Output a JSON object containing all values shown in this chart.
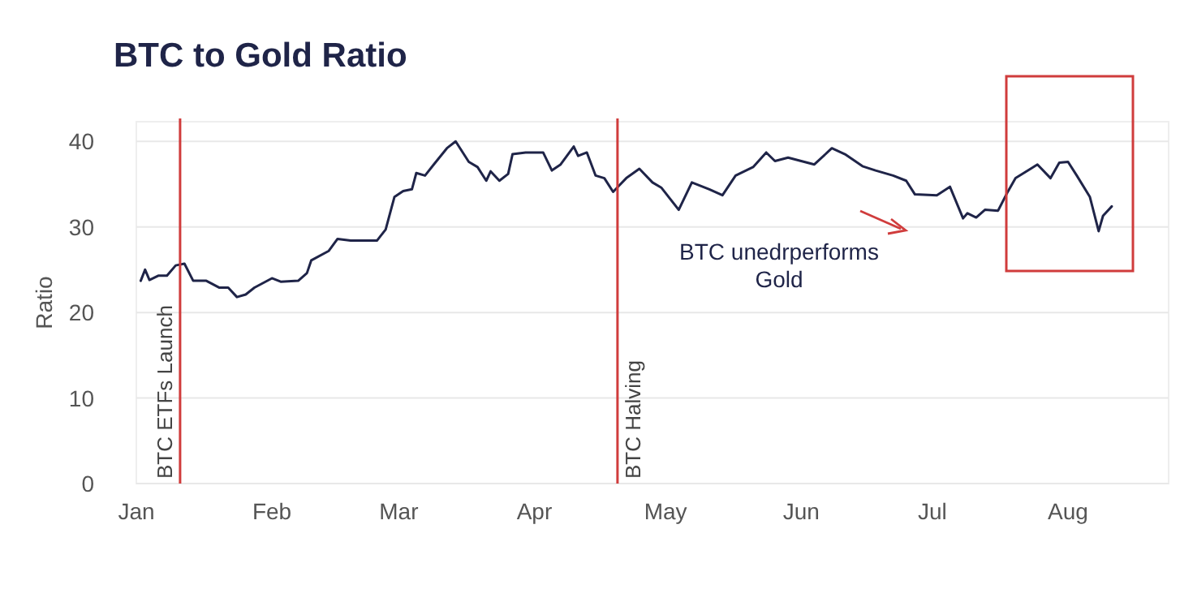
{
  "chart_data": {
    "type": "line",
    "title": "BTC to Gold Ratio",
    "ylabel": "Ratio",
    "annotations": [
      "BTC unedrperforms\nGold"
    ],
    "x": [
      "--01-02",
      "--01-03",
      "--01-04",
      "--01-06",
      "--01-08",
      "--01-10",
      "--01-12",
      "--01-14",
      "--01-17",
      "--01-20",
      "--01-22",
      "--01-24",
      "--01-26",
      "--01-28",
      "--02-01",
      "--02-03",
      "--02-07",
      "--02-09",
      "--02-10",
      "--02-14",
      "--02-16",
      "--02-19",
      "--02-23",
      "--02-25",
      "--02-27",
      "--02-29",
      "--03-02",
      "--03-04",
      "--03-05",
      "--03-07",
      "--03-09",
      "--03-12",
      "--03-14",
      "--03-17",
      "--03-19",
      "--03-21",
      "--03-22",
      "--03-24",
      "--03-26",
      "--03-27",
      "--03-30",
      "--04-03",
      "--04-05",
      "--04-07",
      "--04-10",
      "--04-11",
      "--04-13",
      "--04-15",
      "--04-17",
      "--04-19",
      "--04-22",
      "--04-25",
      "--04-28",
      "--04-30",
      "--05-04",
      "--05-07",
      "--05-11",
      "--05-14",
      "--05-17",
      "--05-21",
      "--05-24",
      "--05-26",
      "--05-29",
      "--06-04",
      "--06-08",
      "--06-11",
      "--06-15",
      "--06-18",
      "--06-22",
      "--06-25",
      "--06-27",
      "--07-02",
      "--07-05",
      "--07-08",
      "--07-09",
      "--07-11",
      "--07-13",
      "--07-16",
      "--07-18",
      "--07-20",
      "--07-25",
      "--07-28",
      "--07-30",
      "--08-01",
      "--08-03",
      "--08-06",
      "--08-08",
      "--08-09",
      "--08-11"
    ],
    "series": [
      {
        "color": "#1f2448",
        "values": [
          23.7,
          25.0,
          23.8,
          24.3,
          24.3,
          25.5,
          25.7,
          23.7,
          23.7,
          22.9,
          22.9,
          21.8,
          22.1,
          22.9,
          24.0,
          23.6,
          23.7,
          24.6,
          26.1,
          27.2,
          28.6,
          28.4,
          28.4,
          28.4,
          29.7,
          33.5,
          34.2,
          34.4,
          36.3,
          36.0,
          37.3,
          39.2,
          40.0,
          37.6,
          37.0,
          35.4,
          36.5,
          35.4,
          36.2,
          38.5,
          38.7,
          38.7,
          36.6,
          37.3,
          39.4,
          38.3,
          38.7,
          36.0,
          35.7,
          34.1,
          35.7,
          36.8,
          35.2,
          34.6,
          32.0,
          35.2,
          34.4,
          33.7,
          36.0,
          37.0,
          38.7,
          37.7,
          38.1,
          37.3,
          39.2,
          38.5,
          37.1,
          36.6,
          36.0,
          35.4,
          33.8,
          33.7,
          34.7,
          31.0,
          31.6,
          31.1,
          32.0,
          31.9,
          33.9,
          35.7,
          37.3,
          35.7,
          37.5,
          37.6,
          36.0,
          33.5,
          29.5,
          31.3,
          32.4
        ]
      }
    ],
    "xlim": [
      "--01-01",
      "--08-24"
    ],
    "xticks": [
      {
        "value": "--01-01",
        "label": "Jan"
      },
      {
        "value": "--02-01",
        "label": "Feb"
      },
      {
        "value": "--03-01",
        "label": "Mar"
      },
      {
        "value": "--04-01",
        "label": "Apr"
      },
      {
        "value": "--05-01",
        "label": "May"
      },
      {
        "value": "--06-01",
        "label": "Jun"
      },
      {
        "value": "--07-01",
        "label": "Jul"
      },
      {
        "value": "--08-01",
        "label": "Aug"
      }
    ],
    "ylim": [
      0,
      42.3
    ],
    "yticks": [
      0,
      10,
      20,
      30,
      40
    ],
    "grid": "y",
    "line_style": "solid",
    "ref_lines": [
      {
        "axis": "x",
        "value": "--01-11",
        "label": "BTC ETFs Launch",
        "color": "#d03c3c"
      },
      {
        "axis": "x",
        "value": "--04-20",
        "label": "BTC Halving",
        "color": "#d03c3c"
      }
    ]
  }
}
